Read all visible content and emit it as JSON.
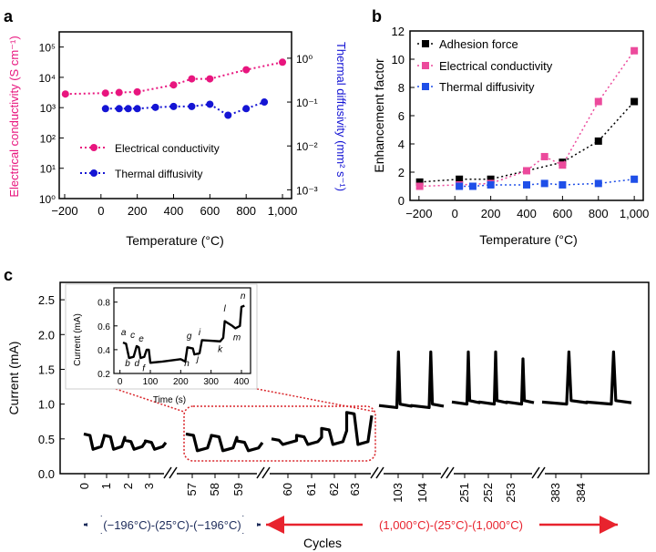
{
  "chart_data": [
    {
      "panel": "a",
      "type": "scatter",
      "xlabel": "Temperature (°C)",
      "ylabel_left": "Electrical conductivity (S cm⁻¹)",
      "ylabel_right": "Thermal diffusivity (mm² s⁻¹)",
      "x_ticks": [
        "−200",
        "0",
        "200",
        "400",
        "600",
        "800",
        "1,000"
      ],
      "xlim": [
        -230,
        1050
      ],
      "left_scale": "log",
      "left_ylim": [
        0,
        5.5
      ],
      "left_ticks": [
        "10⁰",
        "10¹",
        "10²",
        "10³",
        "10⁴",
        "10⁵"
      ],
      "right_scale": "log",
      "right_ylim": [
        -3.2,
        0.6
      ],
      "right_ticks": [
        "10⁻³",
        "10⁻²",
        "10⁻¹",
        "10⁰"
      ],
      "legend": [
        "Electrical conductivity",
        "Thermal diffusivity"
      ],
      "series": [
        {
          "name": "Electrical conductivity",
          "color": "#e8157e",
          "axis": "left",
          "line": "dotted",
          "x": [
            -196,
            25,
            100,
            200,
            400,
            500,
            600,
            800,
            1000
          ],
          "log10_y": [
            3.45,
            3.48,
            3.5,
            3.52,
            3.75,
            3.95,
            3.95,
            4.25,
            4.5
          ]
        },
        {
          "name": "Thermal diffusivity",
          "color": "#1414d4",
          "axis": "right",
          "line": "dotted",
          "x": [
            25,
            100,
            150,
            200,
            300,
            400,
            500,
            600,
            700,
            800,
            900
          ],
          "log10_y": [
            -1.15,
            -1.15,
            -1.15,
            -1.15,
            -1.12,
            -1.1,
            -1.1,
            -1.05,
            -1.3,
            -1.15,
            -1.0
          ]
        }
      ]
    },
    {
      "panel": "b",
      "type": "scatter",
      "xlabel": "Temperature (°C)",
      "ylabel": "Enhancement factor",
      "x_ticks": [
        "−200",
        "0",
        "200",
        "400",
        "600",
        "800",
        "1,000"
      ],
      "xlim": [
        -250,
        1050
      ],
      "ylim": [
        0,
        12
      ],
      "y_ticks": [
        "0",
        "2",
        "4",
        "6",
        "8",
        "10",
        "12"
      ],
      "legend": [
        "Adhesion force",
        "Electrical conductivity",
        "Thermal diffusivity"
      ],
      "series": [
        {
          "name": "Adhesion force",
          "color": "#000000",
          "line": "dotted",
          "x": [
            -196,
            25,
            200,
            600,
            800,
            1000
          ],
          "y": [
            1.3,
            1.5,
            1.5,
            2.7,
            4.2,
            7.0
          ]
        },
        {
          "name": "Electrical conductivity",
          "color": "#ec4a9c",
          "line": "dotted",
          "x": [
            -196,
            25,
            200,
            400,
            500,
            600,
            800,
            1000
          ],
          "y": [
            1.0,
            1.1,
            1.2,
            2.1,
            3.1,
            2.5,
            7.0,
            10.6
          ]
        },
        {
          "name": "Thermal diffusivity",
          "color": "#1f4fe8",
          "line": "dotted",
          "x": [
            25,
            100,
            200,
            400,
            500,
            600,
            800,
            1000
          ],
          "y": [
            1.0,
            1.0,
            1.1,
            1.1,
            1.2,
            1.1,
            1.2,
            1.5
          ]
        }
      ]
    },
    {
      "panel": "c",
      "type": "line",
      "xlabel": "Cycles",
      "ylabel": "Current (mA)",
      "ylim": [
        0,
        2.75
      ],
      "y_ticks": [
        "0.0",
        "0.5",
        "1.0",
        "1.5",
        "2.0",
        "2.5"
      ],
      "x_ticks": [
        "0",
        "1",
        "2",
        "3",
        "57",
        "58",
        "59",
        "60",
        "61",
        "62",
        "63",
        "103",
        "104",
        "251",
        "252",
        "253",
        "383",
        "384"
      ],
      "annotation_left": "(−196°C)-(25°C)-(−196°C)",
      "annotation_right": "(1,000°C)-(25°C)-(1,000°C)",
      "segments": [
        {
          "cycles": "0–3",
          "base": 0.35,
          "peaks": [
            0.57,
            0.55,
            0.48,
            0.47
          ]
        },
        {
          "cycles": "57–59",
          "base": 0.33,
          "peaks": [
            0.57,
            0.55,
            0.47
          ]
        },
        {
          "cycles": "60–63",
          "base": 0.42,
          "peaks": [
            0.5,
            0.55,
            0.65,
            0.88
          ]
        },
        {
          "cycles": "103–104",
          "base": 0.95,
          "peaks": [
            1.75,
            1.75
          ]
        },
        {
          "cycles": "251–253",
          "base": 1.0,
          "peaks": [
            1.75,
            1.75,
            1.65
          ]
        },
        {
          "cycles": "383–384",
          "base": 1.0,
          "peaks": [
            1.75,
            1.75
          ]
        }
      ],
      "inset": {
        "xlabel": "Time (s)",
        "ylabel": "Current (mA)",
        "x_ticks": [
          "0",
          "100",
          "200",
          "300",
          "400"
        ],
        "y_ticks": [
          "0.2",
          "0.4",
          "0.6",
          "0.8"
        ],
        "labels": [
          "a",
          "b",
          "c",
          "d",
          "e",
          "f",
          "g",
          "h",
          "i",
          "j",
          "k",
          "l",
          "m",
          "n"
        ]
      }
    }
  ],
  "panel_labels": [
    "a",
    "b",
    "c"
  ]
}
